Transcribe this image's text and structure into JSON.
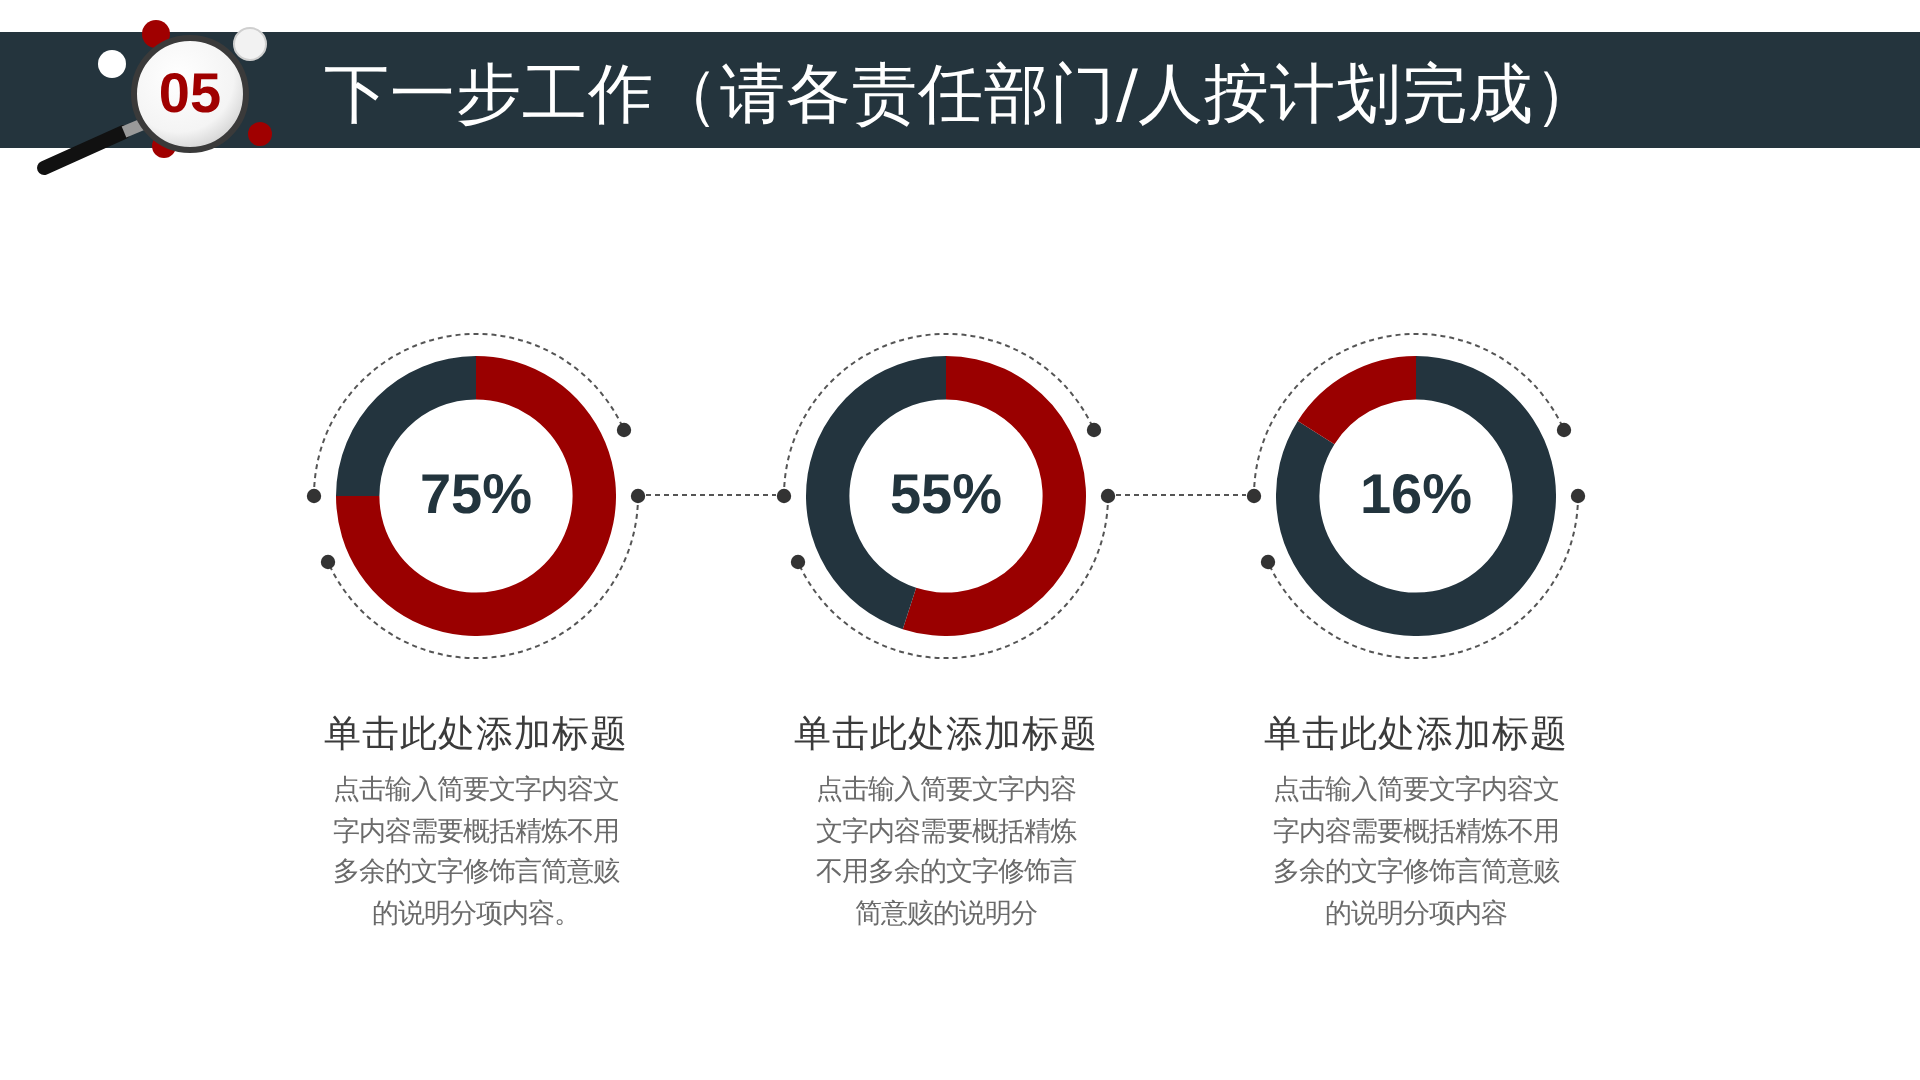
{
  "chart_data": [
    {
      "type": "other",
      "title": "下一步工作（请各责任部门/人按计划完成）",
      "annotations": [
        "05"
      ]
    },
    {
      "type": "donut",
      "title": "单击此处添加标题",
      "categories": [
        null,
        null
      ],
      "values": [
        75,
        25
      ],
      "colors": [
        "#9a0000",
        "#23343e"
      ],
      "value_labels": [
        "75%",
        null
      ],
      "annotations": [
        "点击输入简要文字内容文字内容需要概括精炼不用多余的文字修饰言简意赅的说明分项内容。"
      ]
    },
    {
      "type": "donut",
      "title": "单击此处添加标题",
      "categories": [
        null,
        null
      ],
      "values": [
        55,
        45
      ],
      "colors": [
        "#9a0000",
        "#23343e"
      ],
      "value_labels": [
        "55%",
        null
      ],
      "annotations": [
        "点击输入简要文字内容文字内容需要概括精炼不用多余的文字修饰言简意赅的说明分"
      ]
    },
    {
      "type": "donut",
      "title": "单击此处添加标题",
      "categories": [
        null,
        null
      ],
      "values": [
        84,
        16
      ],
      "colors": [
        "#23343e",
        "#9a0000"
      ],
      "value_labels": [
        null,
        "16%"
      ],
      "annotations": [
        "点击输入简要文字内容文字内容需要概括精炼不用多余的文字修饰言简意赅的说明分项内容"
      ]
    }
  ]
}
